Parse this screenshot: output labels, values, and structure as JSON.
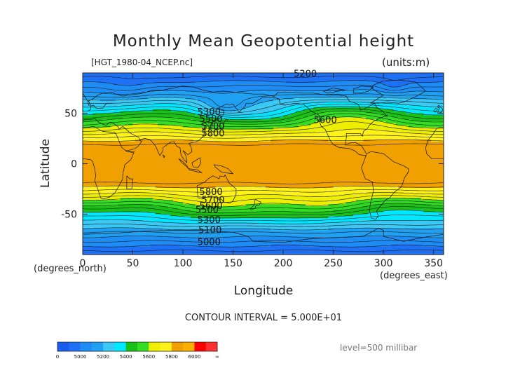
{
  "header": {
    "title": "Monthly Mean Geopotential height",
    "file_label": "[HGT_1980-04_NCEP.nc]",
    "units_label": "(units:m)"
  },
  "footer": {
    "contour_interval": "CONTOUR INTERVAL = 5.000E+01",
    "level_label": "level=500 millibar"
  },
  "chart_data": {
    "type": "heatmap",
    "title": "Monthly Mean Geopotential height",
    "subtitle": "[HGT_1980-04_NCEP.nc]",
    "units": "(units:m)",
    "xlabel": "Longitude",
    "x_unit_label": "(degrees_east)",
    "ylabel": "Latitude",
    "y_unit_label": "(degrees_north)",
    "xlim": [
      0,
      360
    ],
    "ylim": [
      -90,
      90
    ],
    "x_ticks": [
      0,
      50,
      100,
      150,
      200,
      250,
      300,
      350
    ],
    "y_ticks": [
      50,
      0,
      -50
    ],
    "contour_interval": 50,
    "level": "500 millibar",
    "grid": false,
    "legend_placement": "bottom-left",
    "colorbar": {
      "tick_labels": [
        "0",
        "5000",
        "5200",
        "5400",
        "5600",
        "5800",
        "6000",
        "∞"
      ],
      "tick_values": [
        0,
        5000,
        5200,
        5400,
        5600,
        5800,
        6000,
        null
      ],
      "bands": [
        {
          "lo": 0,
          "hi": 5000,
          "colors": [
            "#1a5cf0",
            "#1e70f5"
          ]
        },
        {
          "lo": 5000,
          "hi": 5200,
          "colors": [
            "#1e8cf5",
            "#20a0f2"
          ]
        },
        {
          "lo": 5200,
          "hi": 5400,
          "colors": [
            "#3ac8f5",
            "#00e8ff"
          ]
        },
        {
          "lo": 5400,
          "hi": 5600,
          "colors": [
            "#18c018",
            "#33dd22"
          ]
        },
        {
          "lo": 5600,
          "hi": 5800,
          "colors": [
            "#eeee00",
            "#fff21a"
          ]
        },
        {
          "lo": 5800,
          "hi": 6000,
          "colors": [
            "#f0a000",
            "#fbb000"
          ]
        },
        {
          "lo": 6000,
          "hi": null,
          "colors": [
            "#ff0000",
            "#ff3030"
          ]
        }
      ]
    },
    "contour_labels": [
      {
        "text": "5200",
        "lon": 222,
        "lat": 89
      },
      {
        "text": "5300",
        "lon": 126,
        "lat": 51
      },
      {
        "text": "5500",
        "lon": 128,
        "lat": 44
      },
      {
        "text": "5700",
        "lon": 130,
        "lat": 37
      },
      {
        "text": "5800",
        "lon": 130,
        "lat": 30
      },
      {
        "text": "5600",
        "lon": 242,
        "lat": 43
      },
      {
        "text": "5800",
        "lon": 128,
        "lat": -28
      },
      {
        "text": "5700",
        "lon": 130,
        "lat": -36
      },
      {
        "text": "5600",
        "lon": 128,
        "lat": -42
      },
      {
        "text": "5500",
        "lon": 124,
        "lat": -46
      },
      {
        "text": "5300",
        "lon": 126,
        "lat": -56
      },
      {
        "text": "5100",
        "lon": 127,
        "lat": -66
      },
      {
        "text": "5000",
        "lon": 126,
        "lat": -78
      }
    ]
  }
}
